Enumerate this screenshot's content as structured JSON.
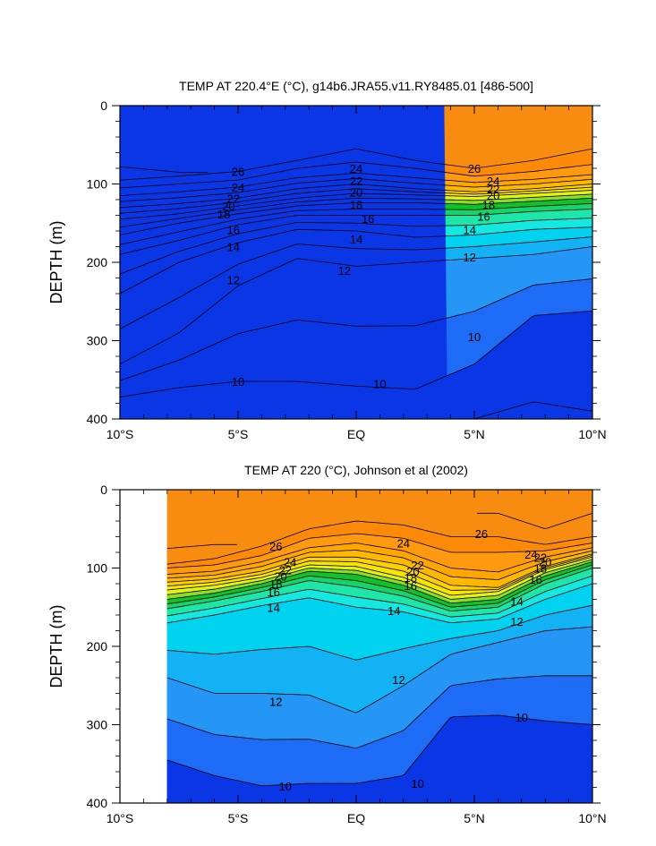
{
  "chart_data": [
    {
      "type": "contour",
      "title": "TEMP AT 220.4°E (°C), g14b6.JRA55.v11.RY8485.01 [486-500]",
      "ylabel": "DEPTH (m)",
      "xlabel": "",
      "x_ticks": [
        "10°S",
        "5°S",
        "EQ",
        "5°N",
        "10°N"
      ],
      "x_range": [
        -10,
        10
      ],
      "y_ticks": [
        "0",
        "100",
        "200",
        "300",
        "400"
      ],
      "ylim": [
        0,
        400
      ],
      "y_reversed": true,
      "x_data_min": -10,
      "contour_interval": 1,
      "isotherm_depths": {
        "lats": [
          -10,
          -7.5,
          -5,
          -2.5,
          0,
          2.5,
          5,
          7.5,
          10
        ],
        "levels": {
          "27": [
            78,
            85,
            null,
            null,
            null,
            null,
            null,
            null,
            null
          ],
          "26": [
            95,
            90,
            84,
            70,
            55,
            70,
            80,
            70,
            55
          ],
          "25": [
            105,
            100,
            95,
            80,
            72,
            80,
            90,
            84,
            75
          ],
          "24": [
            115,
            110,
            104,
            92,
            86,
            92,
            98,
            94,
            88
          ],
          "22": [
            130,
            125,
            118,
            106,
            100,
            106,
            110,
            106,
            100
          ],
          "20": [
            145,
            138,
            128,
            118,
            112,
            114,
            116,
            112,
            108
          ],
          "18": [
            165,
            150,
            138,
            128,
            124,
            124,
            126,
            122,
            118
          ],
          "16": [
            190,
            172,
            152,
            140,
            140,
            140,
            140,
            135,
            132
          ],
          "14": [
            240,
            200,
            175,
            158,
            160,
            168,
            165,
            158,
            155
          ],
          "12": [
            330,
            290,
            230,
            195,
            205,
            200,
            195,
            190,
            180
          ],
          "10": [
            372,
            360,
            352,
            352,
            358,
            362,
            330,
            268,
            262
          ],
          "9": [
            null,
            null,
            null,
            null,
            null,
            null,
            400,
            378,
            390
          ]
        }
      },
      "line_labels": [
        {
          "text": "26",
          "lat": -5,
          "depth": 84
        },
        {
          "text": "24",
          "lat": -5,
          "depth": 104
        },
        {
          "text": "22",
          "lat": -5.2,
          "depth": 118
        },
        {
          "text": "20",
          "lat": -5.4,
          "depth": 128
        },
        {
          "text": "18",
          "lat": -5.6,
          "depth": 138
        },
        {
          "text": "16",
          "lat": -5.2,
          "depth": 158
        },
        {
          "text": "14",
          "lat": -5.2,
          "depth": 180
        },
        {
          "text": "12",
          "lat": -5.2,
          "depth": 222
        },
        {
          "text": "10",
          "lat": -5,
          "depth": 352
        },
        {
          "text": "24",
          "lat": 0,
          "depth": 80
        },
        {
          "text": "22",
          "lat": 0,
          "depth": 96
        },
        {
          "text": "20",
          "lat": 0,
          "depth": 110
        },
        {
          "text": "18",
          "lat": 0,
          "depth": 126
        },
        {
          "text": "16",
          "lat": 0.5,
          "depth": 144
        },
        {
          "text": "14",
          "lat": 0,
          "depth": 170
        },
        {
          "text": "12",
          "lat": -0.5,
          "depth": 210
        },
        {
          "text": "10",
          "lat": 1,
          "depth": 355
        },
        {
          "text": "26",
          "lat": 5,
          "depth": 80
        },
        {
          "text": "24",
          "lat": 5.8,
          "depth": 96
        },
        {
          "text": "22",
          "lat": 5.8,
          "depth": 106
        },
        {
          "text": "20",
          "lat": 5.8,
          "depth": 114
        },
        {
          "text": "18",
          "lat": 5.6,
          "depth": 126
        },
        {
          "text": "16",
          "lat": 5.4,
          "depth": 141
        },
        {
          "text": "14",
          "lat": 4.8,
          "depth": 158
        },
        {
          "text": "12",
          "lat": 4.8,
          "depth": 193
        },
        {
          "text": "10",
          "lat": 5,
          "depth": 295
        }
      ]
    },
    {
      "type": "contour",
      "title": "TEMP AT 220 (°C), Johnson et al (2002)",
      "ylabel": "DEPTH (m)",
      "xlabel": "",
      "x_ticks": [
        "10°S",
        "5°S",
        "EQ",
        "5°N",
        "10°N"
      ],
      "x_range": [
        -10,
        10
      ],
      "y_ticks": [
        "0",
        "100",
        "200",
        "300",
        "400"
      ],
      "ylim": [
        0,
        400
      ],
      "y_reversed": true,
      "x_data_min": -8,
      "contour_interval": 1,
      "isotherm_depths": {
        "lats": [
          -8,
          -6,
          -4,
          -2,
          0,
          2,
          4,
          6,
          8,
          10
        ],
        "levels": {
          "27": [
            75,
            70,
            null,
            null,
            null,
            null,
            null,
            30,
            50,
            30
          ],
          "26": [
            95,
            88,
            72,
            50,
            40,
            45,
            60,
            60,
            70,
            60
          ],
          "25": [
            100,
            96,
            84,
            62,
            56,
            62,
            80,
            80,
            78,
            68
          ],
          "24": [
            108,
            104,
            92,
            74,
            68,
            78,
            100,
            105,
            86,
            74
          ],
          "22": [
            118,
            114,
            104,
            86,
            86,
            96,
            122,
            125,
            98,
            82
          ],
          "20": [
            128,
            122,
            112,
            96,
            98,
            112,
            135,
            130,
            102,
            86
          ],
          "18": [
            140,
            132,
            120,
            104,
            108,
            122,
            145,
            140,
            110,
            92
          ],
          "16": [
            152,
            142,
            130,
            116,
            124,
            136,
            155,
            150,
            120,
            100
          ],
          "14": [
            170,
            160,
            148,
            138,
            150,
            156,
            170,
            165,
            140,
            120
          ],
          "12": [
            240,
            260,
            260,
            262,
            285,
            250,
            210,
            195,
            180,
            175
          ],
          "10": [
            345,
            365,
            378,
            375,
            375,
            365,
            290,
            288,
            295,
            300
          ]
        }
      },
      "line_labels": [
        {
          "text": "26",
          "lat": -3.4,
          "depth": 72
        },
        {
          "text": "24",
          "lat": -2.8,
          "depth": 92
        },
        {
          "text": "22",
          "lat": -3,
          "depth": 102
        },
        {
          "text": "20",
          "lat": -3.2,
          "depth": 110
        },
        {
          "text": "18",
          "lat": -3.4,
          "depth": 120
        },
        {
          "text": "16",
          "lat": -3.5,
          "depth": 130
        },
        {
          "text": "14",
          "lat": -3.5,
          "depth": 150
        },
        {
          "text": "12",
          "lat": -3.4,
          "depth": 270
        },
        {
          "text": "10",
          "lat": -3,
          "depth": 378
        },
        {
          "text": "24",
          "lat": 2,
          "depth": 68
        },
        {
          "text": "22",
          "lat": 2.6,
          "depth": 96
        },
        {
          "text": "20",
          "lat": 2.4,
          "depth": 104
        },
        {
          "text": "18",
          "lat": 2.3,
          "depth": 112
        },
        {
          "text": "16",
          "lat": 2.3,
          "depth": 122
        },
        {
          "text": "14",
          "lat": 1.6,
          "depth": 154
        },
        {
          "text": "12",
          "lat": 1.8,
          "depth": 242
        },
        {
          "text": "10",
          "lat": 2.6,
          "depth": 375
        },
        {
          "text": "26",
          "lat": 5.3,
          "depth": 56
        },
        {
          "text": "24",
          "lat": 7.4,
          "depth": 82
        },
        {
          "text": "22",
          "lat": 7.8,
          "depth": 86
        },
        {
          "text": "20",
          "lat": 8,
          "depth": 92
        },
        {
          "text": "18",
          "lat": 7.8,
          "depth": 100
        },
        {
          "text": "16",
          "lat": 7.6,
          "depth": 114
        },
        {
          "text": "14",
          "lat": 6.8,
          "depth": 142
        },
        {
          "text": "12",
          "lat": 6.8,
          "depth": 168
        },
        {
          "text": "10",
          "lat": 7,
          "depth": 290
        }
      ]
    }
  ],
  "colors": {
    "9": "#0a36e6",
    "10": "#1e6cf5",
    "11": "#2596f6",
    "12": "#12b2f4",
    "13": "#00d2ef",
    "14": "#14e8e0",
    "15": "#1ee6a8",
    "16": "#18d26a",
    "17": "#12c02a",
    "18": "#8ddc2a",
    "19": "#e4f212",
    "20": "#f8e400",
    "21": "#ffd000",
    "22": "#ffb800",
    "23": "#ffa600",
    "24": "#ff9a10",
    "25": "#fc8a08",
    "26": "#f88c10",
    "27": "#ee4a14"
  }
}
